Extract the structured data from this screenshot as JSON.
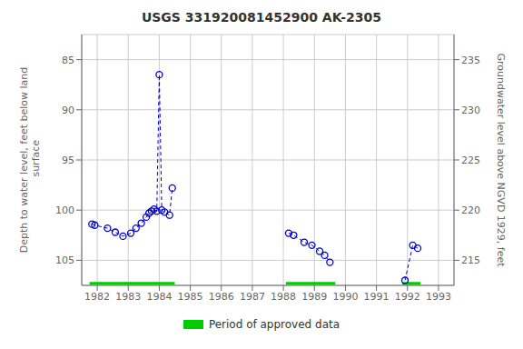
{
  "chart_data": {
    "type": "line",
    "title": "USGS 331920081452900 AK-2305",
    "ylabel": "Depth to water level, feet below land\n surface",
    "y2label": "Groundwater level above NGVD 1929, feet",
    "xlim": [
      1981.5,
      1993.5
    ],
    "xticks": [
      1982,
      1983,
      1984,
      1985,
      1986,
      1987,
      1988,
      1989,
      1990,
      1991,
      1992,
      1993
    ],
    "ylim": [
      107.5,
      82.5
    ],
    "yticks": [
      85,
      90,
      95,
      100,
      105
    ],
    "y2lim": [
      212.5,
      237.5
    ],
    "y2ticks": [
      215,
      220,
      225,
      230,
      235
    ],
    "grid": true,
    "legend": "lower center",
    "series": [
      {
        "color": "#0000CC",
        "line_style": "dashed",
        "marker": "open_circle",
        "x": [
          1981.83,
          1981.92,
          1982.33,
          1982.58,
          1982.83,
          1983.08,
          1983.25,
          1983.42,
          1983.58,
          1983.67,
          1983.75,
          1983.83,
          1983.92,
          1984.0,
          1984.08,
          1984.17,
          1984.33,
          1984.42
        ],
        "values": [
          101.4,
          101.5,
          101.8,
          102.2,
          102.6,
          102.3,
          101.8,
          101.3,
          100.7,
          100.3,
          100.1,
          99.9,
          100.1,
          86.5,
          100.0,
          100.2,
          100.5,
          97.8
        ]
      },
      {
        "color": "#0000CC",
        "line_style": "dashed",
        "marker": "open_circle",
        "x": [
          1988.17,
          1988.33,
          1988.67,
          1988.92,
          1989.17,
          1989.33,
          1989.5
        ],
        "values": [
          102.3,
          102.5,
          103.2,
          103.5,
          104.1,
          104.5,
          105.2
        ]
      },
      {
        "color": "#0000CC",
        "line_style": "dashed",
        "marker": "open_circle",
        "x": [
          1991.92,
          1992.17,
          1992.33
        ],
        "values": [
          107.0,
          103.5,
          103.8
        ]
      },
      {
        "name": "Period of approved data",
        "type": "bar",
        "orientation": "horizontal",
        "color": "#00CC00",
        "ranges": [
          [
            1981.75,
            1984.5
          ],
          [
            1988.08,
            1989.67
          ],
          [
            1991.83,
            1992.42
          ]
        ],
        "y": 107.3,
        "height": 0.28
      }
    ]
  }
}
